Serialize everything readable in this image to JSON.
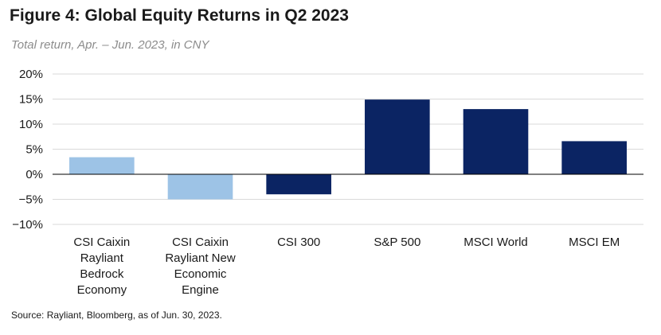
{
  "title": "Figure 4: Global Equity Returns in Q2 2023",
  "subtitle": "Total return, Apr. – Jun. 2023, in CNY",
  "source": "Source: Rayliant, Bloomberg, as of Jun. 30, 2023.",
  "chart_data": {
    "type": "bar",
    "title": "Figure 4: Global Equity Returns in Q2 2023",
    "subtitle": "Total return, Apr. – Jun. 2023, in CNY",
    "xlabel": "",
    "ylabel": "",
    "ylim": [
      -10,
      20
    ],
    "yticks": [
      20,
      15,
      10,
      5,
      0,
      -5,
      -10
    ],
    "ytick_labels": [
      "20%",
      "15%",
      "10%",
      "5%",
      "0%",
      "−5%",
      "−10%"
    ],
    "grid": true,
    "legend": "none",
    "categories": [
      [
        "CSI Caixin",
        "Rayliant",
        "Bedrock",
        "Economy"
      ],
      [
        "CSI Caixin",
        "Rayliant New",
        "Economic",
        "Engine"
      ],
      [
        "CSI 300"
      ],
      [
        "S&P 500"
      ],
      [
        "MSCI World"
      ],
      [
        "MSCI EM"
      ]
    ],
    "values": [
      3.4,
      -5.0,
      -4.0,
      14.9,
      13.0,
      6.6
    ],
    "bar_colors": [
      "#9dc3e6",
      "#9dc3e6",
      "#0b2463",
      "#0b2463",
      "#0b2463",
      "#0b2463"
    ],
    "colors": {
      "grid": "#d9d9d9",
      "axis": "#000000"
    }
  }
}
